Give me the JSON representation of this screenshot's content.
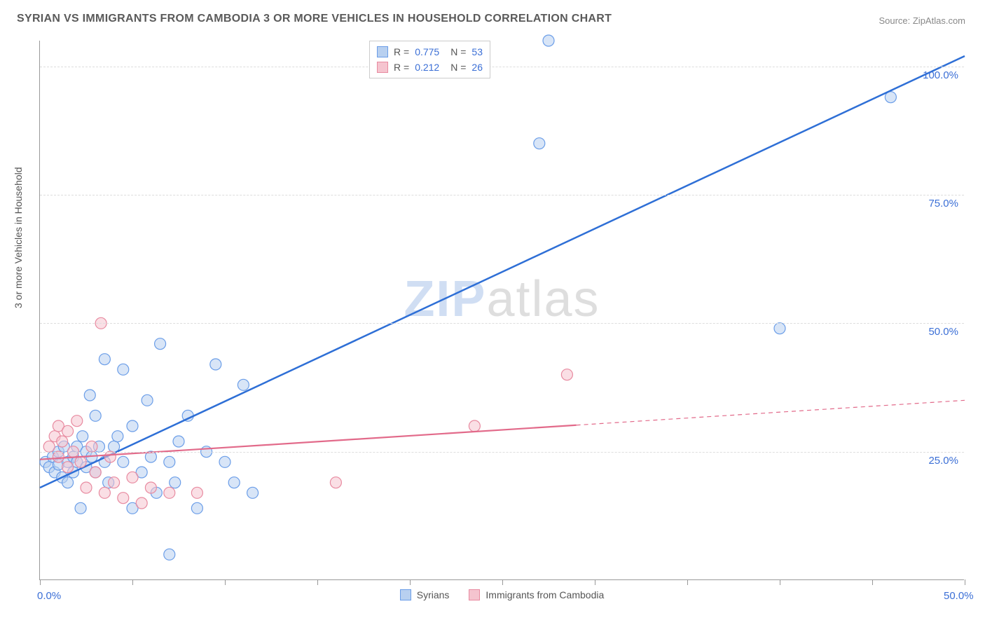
{
  "title": "SYRIAN VS IMMIGRANTS FROM CAMBODIA 3 OR MORE VEHICLES IN HOUSEHOLD CORRELATION CHART",
  "source": "Source: ZipAtlas.com",
  "ylabel": "3 or more Vehicles in Household",
  "watermark": {
    "part1": "ZIP",
    "part2": "atlas"
  },
  "chart": {
    "type": "scatter-with-regression",
    "background_color": "#ffffff",
    "grid_color": "#dddddd",
    "axis_color": "#999999",
    "label_color": "#555555",
    "value_color": "#3b6fd6",
    "xlim": [
      0,
      50
    ],
    "ylim": [
      0,
      105
    ],
    "x_ticks": [
      0,
      5,
      10,
      15,
      20,
      25,
      30,
      35,
      40,
      45,
      50
    ],
    "x_tick_labels": {
      "0": "0.0%",
      "50": "50.0%"
    },
    "y_gridlines": [
      25,
      50,
      75,
      100
    ],
    "y_tick_labels": {
      "25": "25.0%",
      "50": "50.0%",
      "75": "75.0%",
      "100": "100.0%"
    },
    "marker_radius": 8,
    "marker_stroke_width": 1.2,
    "line_width_primary": 2.5,
    "line_width_secondary": 2.2,
    "series": [
      {
        "name": "Syrians",
        "fill": "#b8d0f0",
        "stroke": "#6a9de8",
        "fill_opacity": 0.55,
        "line_color": "#2e6fd6",
        "R": 0.775,
        "N": 53,
        "regression": {
          "x1": 0,
          "y1": 18,
          "x2": 50,
          "y2": 102,
          "dashed_from_x": null
        },
        "points": [
          [
            0.3,
            23
          ],
          [
            0.5,
            22
          ],
          [
            0.7,
            24
          ],
          [
            0.8,
            21
          ],
          [
            1.0,
            25
          ],
          [
            1.0,
            22.5
          ],
          [
            1.2,
            20
          ],
          [
            1.3,
            26
          ],
          [
            1.5,
            23
          ],
          [
            1.5,
            19
          ],
          [
            1.8,
            24
          ],
          [
            1.8,
            21
          ],
          [
            2.0,
            26
          ],
          [
            2.0,
            23
          ],
          [
            2.2,
            14
          ],
          [
            2.3,
            28
          ],
          [
            2.5,
            25
          ],
          [
            2.5,
            22
          ],
          [
            2.7,
            36
          ],
          [
            2.8,
            24
          ],
          [
            3.0,
            32
          ],
          [
            3.0,
            21
          ],
          [
            3.2,
            26
          ],
          [
            3.5,
            43
          ],
          [
            3.5,
            23
          ],
          [
            3.7,
            19
          ],
          [
            4.0,
            26
          ],
          [
            4.2,
            28
          ],
          [
            4.5,
            41
          ],
          [
            4.5,
            23
          ],
          [
            5.0,
            14
          ],
          [
            5.0,
            30
          ],
          [
            5.5,
            21
          ],
          [
            5.8,
            35
          ],
          [
            6.0,
            24
          ],
          [
            6.3,
            17
          ],
          [
            6.5,
            46
          ],
          [
            7.0,
            23
          ],
          [
            7.0,
            5
          ],
          [
            7.3,
            19
          ],
          [
            7.5,
            27
          ],
          [
            8.0,
            32
          ],
          [
            8.5,
            14
          ],
          [
            9.0,
            25
          ],
          [
            9.5,
            42
          ],
          [
            10.0,
            23
          ],
          [
            10.5,
            19
          ],
          [
            11.0,
            38
          ],
          [
            11.5,
            17
          ],
          [
            27.0,
            85
          ],
          [
            27.5,
            105
          ],
          [
            40.0,
            49
          ],
          [
            46.0,
            94
          ]
        ]
      },
      {
        "name": "Immigrants from Cambodia",
        "fill": "#f5c4cf",
        "stroke": "#e88aa0",
        "fill_opacity": 0.55,
        "line_color": "#e26a8a",
        "R": 0.212,
        "N": 26,
        "regression": {
          "x1": 0,
          "y1": 23.5,
          "x2": 50,
          "y2": 35,
          "dashed_from_x": 29
        },
        "points": [
          [
            0.5,
            26
          ],
          [
            0.8,
            28
          ],
          [
            1.0,
            30
          ],
          [
            1.0,
            24
          ],
          [
            1.2,
            27
          ],
          [
            1.5,
            22
          ],
          [
            1.5,
            29
          ],
          [
            1.8,
            25
          ],
          [
            2.0,
            31
          ],
          [
            2.2,
            23
          ],
          [
            2.5,
            18
          ],
          [
            2.8,
            26
          ],
          [
            3.0,
            21
          ],
          [
            3.3,
            50
          ],
          [
            3.5,
            17
          ],
          [
            3.8,
            24
          ],
          [
            4.0,
            19
          ],
          [
            4.5,
            16
          ],
          [
            5.0,
            20
          ],
          [
            5.5,
            15
          ],
          [
            6.0,
            18
          ],
          [
            7.0,
            17
          ],
          [
            8.5,
            17
          ],
          [
            16.0,
            19
          ],
          [
            23.5,
            30
          ],
          [
            28.5,
            40
          ]
        ]
      }
    ],
    "legend_bottom": [
      {
        "label": "Syrians",
        "fill": "#b8d0f0",
        "stroke": "#6a9de8"
      },
      {
        "label": "Immigrants from Cambodia",
        "fill": "#f5c4cf",
        "stroke": "#e88aa0"
      }
    ]
  }
}
